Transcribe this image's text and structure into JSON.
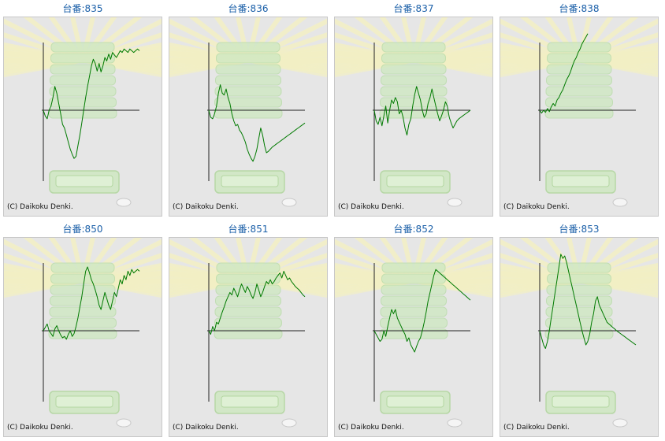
{
  "copyright": "(C) Daikoku Denki.",
  "colors": {
    "title": "#1a5fa8",
    "line": "#007a00",
    "axis": "#222222",
    "background": "#e6e6e6"
  },
  "panels": [
    {
      "title": "台番:835"
    },
    {
      "title": "台番:836"
    },
    {
      "title": "台番:837"
    },
    {
      "title": "台番:838"
    },
    {
      "title": "台番:850"
    },
    {
      "title": "台番:851"
    },
    {
      "title": "台番:852"
    },
    {
      "title": "台番:853"
    }
  ],
  "chart_data": [
    {
      "type": "line",
      "title": "台番:835",
      "xlim": [
        0,
        100
      ],
      "ylim": [
        -100,
        100
      ],
      "x": [
        0,
        2,
        4,
        6,
        8,
        10,
        12,
        14,
        16,
        18,
        20,
        22,
        24,
        26,
        28,
        30,
        32,
        34,
        36,
        38,
        40,
        42,
        44,
        46,
        48,
        50,
        52,
        54,
        56,
        58,
        60,
        62,
        64,
        66,
        68,
        70,
        72,
        74,
        76,
        78,
        80,
        82,
        84,
        86,
        88,
        90,
        92,
        94,
        96,
        98,
        100
      ],
      "y": [
        0,
        -8,
        -12,
        0,
        5,
        15,
        28,
        20,
        8,
        -5,
        -20,
        -25,
        -35,
        -45,
        -55,
        -62,
        -68,
        -65,
        -50,
        -35,
        -18,
        0,
        15,
        28,
        40,
        52,
        60,
        55,
        46,
        55,
        45,
        52,
        62,
        58,
        66,
        60,
        68,
        65,
        62,
        66,
        70,
        68,
        72,
        70,
        68,
        72,
        70,
        68,
        70,
        72,
        70
      ]
    },
    {
      "type": "line",
      "title": "台番:836",
      "xlim": [
        0,
        100
      ],
      "ylim": [
        -100,
        100
      ],
      "x": [
        0,
        2,
        4,
        6,
        8,
        10,
        12,
        14,
        16,
        18,
        20,
        22,
        24,
        26,
        28,
        30,
        32,
        34,
        36,
        38,
        40,
        42,
        44,
        46,
        48,
        50,
        52,
        54,
        56,
        58,
        60,
        62,
        64,
        66,
        68,
        70,
        72,
        74,
        76,
        78,
        80,
        82,
        84,
        86,
        88,
        90,
        92,
        94,
        96,
        98,
        100
      ],
      "y": [
        0,
        -10,
        -12,
        -5,
        5,
        20,
        30,
        20,
        18,
        25,
        15,
        8,
        -5,
        -15,
        -22,
        -20,
        -28,
        -32,
        -38,
        -45,
        -55,
        -62,
        -68,
        -72,
        -65,
        -55,
        -40,
        -25,
        -35,
        -50,
        -60,
        -58,
        -55,
        -52,
        -50,
        -48,
        -46,
        -44,
        -42,
        -40,
        -38,
        -36,
        -34,
        -32,
        -30,
        -28,
        -26,
        -24,
        -22,
        -20,
        -18
      ]
    },
    {
      "type": "line",
      "title": "台番:837",
      "xlim": [
        0,
        100
      ],
      "ylim": [
        -100,
        100
      ],
      "x": [
        0,
        2,
        4,
        6,
        8,
        10,
        12,
        14,
        16,
        18,
        20,
        22,
        24,
        26,
        28,
        30,
        32,
        34,
        36,
        38,
        40,
        42,
        44,
        46,
        48,
        50,
        52,
        54,
        56,
        58,
        60,
        62,
        64,
        66,
        68,
        70,
        72,
        74,
        76,
        78,
        80,
        82,
        84,
        86,
        88,
        90,
        92,
        94,
        96,
        98,
        100
      ],
      "y": [
        0,
        -15,
        -20,
        -10,
        -22,
        -8,
        5,
        -18,
        0,
        12,
        8,
        15,
        10,
        -5,
        0,
        -10,
        -25,
        -35,
        -20,
        -12,
        5,
        18,
        28,
        20,
        12,
        0,
        -10,
        -5,
        8,
        15,
        25,
        15,
        5,
        -5,
        -15,
        -8,
        0,
        10,
        5,
        -10,
        -18,
        -25,
        -20,
        -15,
        -12,
        -10,
        -8,
        -6,
        -4,
        -2,
        0
      ]
    },
    {
      "type": "line",
      "title": "台番:838",
      "xlim": [
        0,
        100
      ],
      "ylim": [
        -100,
        100
      ],
      "x": [
        0,
        2,
        4,
        6,
        8,
        10,
        12,
        14,
        16,
        18,
        20,
        22,
        24,
        26,
        28,
        30,
        32,
        34,
        36,
        38,
        40,
        42,
        44,
        46,
        48,
        50
      ],
      "y": [
        0,
        -4,
        0,
        -3,
        2,
        -2,
        4,
        8,
        5,
        12,
        15,
        20,
        24,
        30,
        36,
        40,
        45,
        52,
        58,
        62,
        68,
        72,
        78,
        82,
        86,
        90
      ]
    },
    {
      "type": "line",
      "title": "台番:850",
      "xlim": [
        0,
        100
      ],
      "ylim": [
        -100,
        100
      ],
      "x": [
        0,
        2,
        4,
        6,
        8,
        10,
        12,
        14,
        16,
        18,
        20,
        22,
        24,
        26,
        28,
        30,
        32,
        34,
        36,
        38,
        40,
        42,
        44,
        46,
        48,
        50,
        52,
        54,
        56,
        58,
        60,
        62,
        64,
        66,
        68,
        70,
        72,
        74,
        76,
        78,
        80,
        82,
        84,
        86,
        88,
        90,
        92,
        94,
        96,
        98,
        100
      ],
      "y": [
        0,
        4,
        8,
        0,
        -4,
        -8,
        2,
        6,
        0,
        -6,
        -10,
        -8,
        -12,
        -5,
        0,
        -8,
        -4,
        5,
        15,
        28,
        40,
        55,
        70,
        75,
        68,
        60,
        55,
        48,
        40,
        30,
        25,
        35,
        45,
        38,
        30,
        25,
        35,
        45,
        40,
        50,
        60,
        55,
        65,
        60,
        70,
        65,
        72,
        68,
        70,
        72,
        70
      ]
    },
    {
      "type": "line",
      "title": "台番:851",
      "xlim": [
        0,
        100
      ],
      "ylim": [
        -100,
        100
      ],
      "x": [
        0,
        2,
        4,
        6,
        8,
        10,
        12,
        14,
        16,
        18,
        20,
        22,
        24,
        26,
        28,
        30,
        32,
        34,
        36,
        38,
        40,
        42,
        44,
        46,
        48,
        50,
        52,
        54,
        56,
        58,
        60,
        62,
        64,
        66,
        68,
        70,
        72,
        74,
        76,
        78,
        80,
        82,
        84,
        86,
        88,
        90,
        92,
        94,
        96,
        98,
        100
      ],
      "y": [
        0,
        -5,
        5,
        0,
        10,
        8,
        15,
        22,
        28,
        35,
        40,
        45,
        42,
        50,
        45,
        40,
        48,
        55,
        50,
        45,
        52,
        48,
        42,
        38,
        45,
        55,
        48,
        40,
        45,
        52,
        58,
        55,
        60,
        55,
        58,
        62,
        65,
        68,
        62,
        70,
        65,
        60,
        62,
        58,
        55,
        52,
        50,
        48,
        45,
        42,
        40
      ]
    },
    {
      "type": "line",
      "title": "台番:852",
      "xlim": [
        0,
        100
      ],
      "ylim": [
        -100,
        100
      ],
      "x": [
        0,
        2,
        4,
        6,
        8,
        10,
        12,
        14,
        16,
        18,
        20,
        22,
        24,
        26,
        28,
        30,
        32,
        34,
        36,
        38,
        40,
        42,
        44,
        46,
        48,
        50,
        52,
        54,
        56,
        58,
        60,
        62,
        64,
        66,
        68,
        70,
        72,
        74,
        76,
        78,
        80,
        82,
        84,
        86,
        88,
        90,
        92,
        94,
        96,
        98,
        100
      ],
      "y": [
        0,
        -5,
        -10,
        -15,
        -12,
        0,
        -8,
        5,
        15,
        25,
        20,
        25,
        15,
        10,
        5,
        0,
        -5,
        -15,
        -10,
        -20,
        -25,
        -30,
        -22,
        -15,
        -10,
        0,
        10,
        22,
        35,
        45,
        55,
        65,
        72,
        70,
        68,
        66,
        64,
        62,
        60,
        58,
        56,
        54,
        52,
        50,
        48,
        46,
        44,
        42,
        40,
        38,
        36
      ]
    },
    {
      "type": "line",
      "title": "台番:853",
      "xlim": [
        0,
        100
      ],
      "ylim": [
        -100,
        100
      ],
      "x": [
        0,
        2,
        4,
        6,
        8,
        10,
        12,
        14,
        16,
        18,
        20,
        22,
        24,
        26,
        28,
        30,
        32,
        34,
        36,
        38,
        40,
        42,
        44,
        46,
        48,
        50,
        52,
        54,
        56,
        58,
        60,
        62,
        64,
        66,
        68,
        70,
        72,
        74,
        76,
        78,
        80,
        82,
        84,
        86,
        88,
        90,
        92,
        94,
        96,
        98,
        100
      ],
      "y": [
        0,
        -10,
        -20,
        -25,
        -15,
        0,
        15,
        30,
        45,
        60,
        75,
        90,
        85,
        88,
        80,
        70,
        60,
        50,
        40,
        30,
        20,
        10,
        0,
        -10,
        -20,
        -15,
        -5,
        10,
        20,
        35,
        40,
        30,
        25,
        20,
        15,
        10,
        8,
        6,
        4,
        2,
        0,
        -2,
        -4,
        -6,
        -8,
        -10,
        -12,
        -14,
        -16,
        -18,
        -20
      ]
    }
  ]
}
